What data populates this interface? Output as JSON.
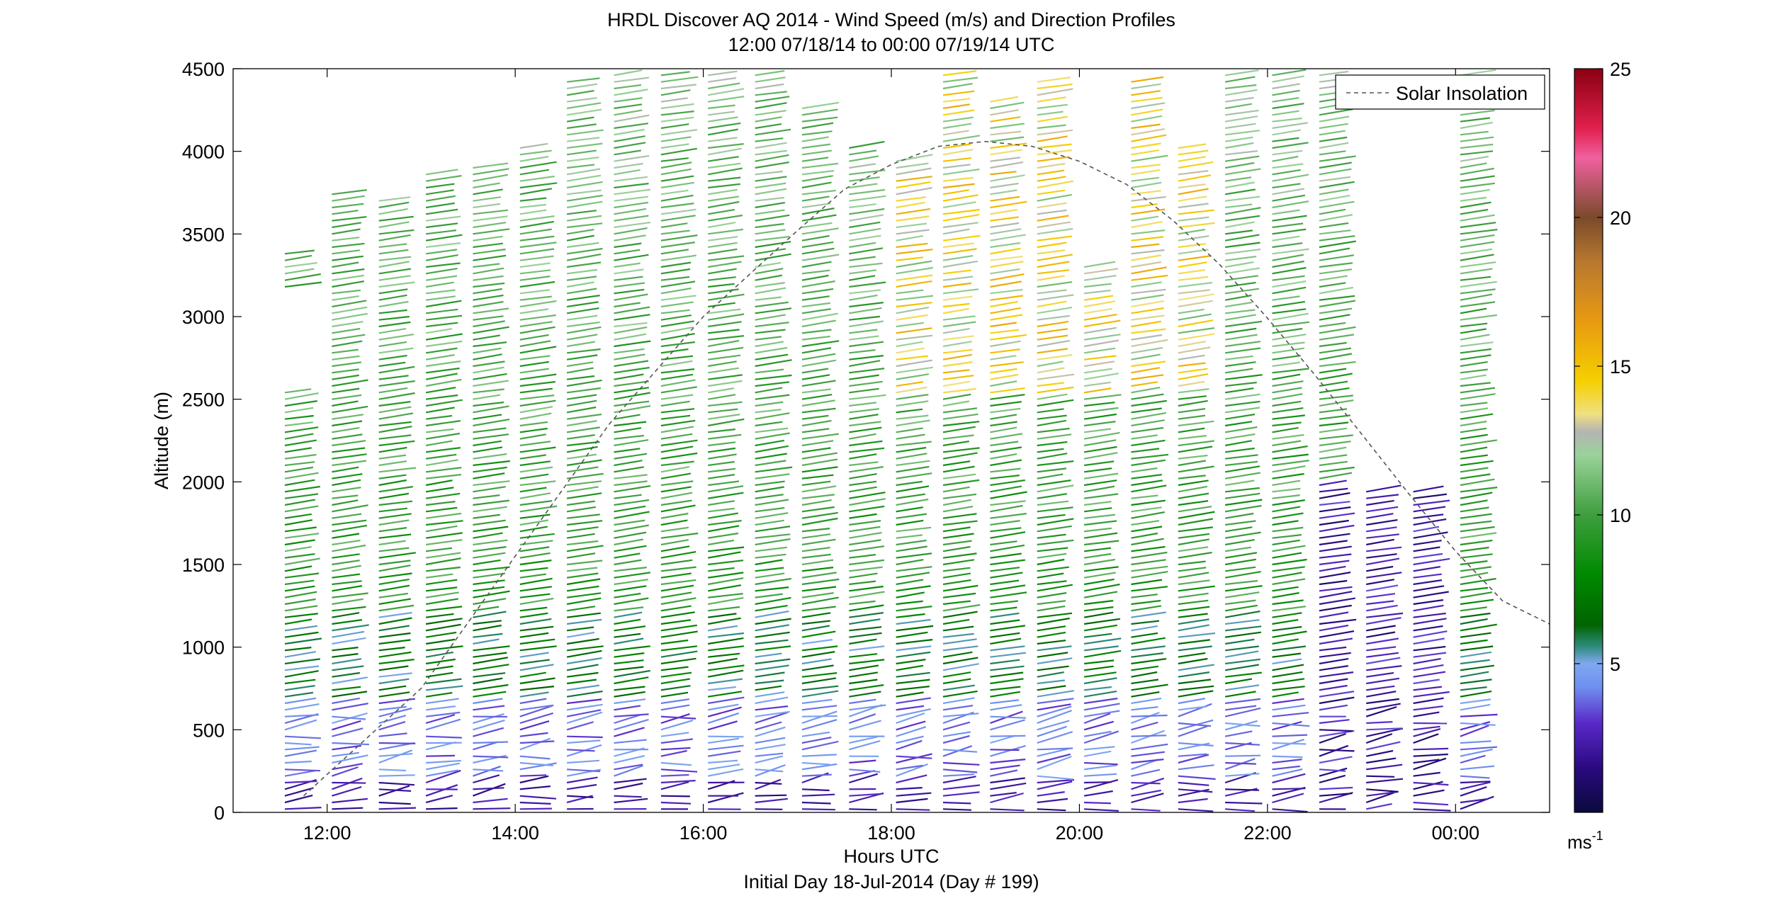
{
  "chart_data": {
    "type": "wind_barb_profiles",
    "title": "HRDL Discover AQ 2014 - Wind Speed (m/s) and Direction Profiles",
    "subtitle": "12:00 07/18/14 to 00:00 07/19/14  UTC",
    "xlabel": "Hours UTC",
    "xlabel2": "Initial Day 18-Jul-2014 (Day # 199)",
    "ylabel": "Altitude (m)",
    "x_unit": "hours UTC",
    "xlim": [
      11.0,
      25.0
    ],
    "ylim": [
      0,
      4500
    ],
    "x_ticks": [
      12,
      14,
      16,
      18,
      20,
      22,
      24
    ],
    "x_tick_labels": [
      "12:00",
      "14:00",
      "16:00",
      "18:00",
      "20:00",
      "22:00",
      "00:00"
    ],
    "y_ticks": [
      0,
      500,
      1000,
      1500,
      2000,
      2500,
      3000,
      3500,
      4000,
      4500
    ],
    "y_tick_labels": [
      "0",
      "500",
      "1000",
      "1500",
      "2000",
      "2500",
      "3000",
      "3500",
      "4000",
      "4500"
    ],
    "colorbar": {
      "min": 0,
      "max": 25,
      "ticks": [
        5,
        10,
        15,
        20,
        25
      ],
      "tick_labels": [
        "5",
        "10",
        "15",
        "20",
        "25"
      ],
      "unit_label": "ms",
      "unit_exponent": "-1",
      "stops": [
        {
          "v": 0,
          "color": "#0a0a3c"
        },
        {
          "v": 1.5,
          "color": "#2a0a80"
        },
        {
          "v": 3,
          "color": "#5a28c8"
        },
        {
          "v": 4.2,
          "color": "#6f8ff0"
        },
        {
          "v": 5,
          "color": "#7fa8f0"
        },
        {
          "v": 5.6,
          "color": "#2c8a78"
        },
        {
          "v": 6.3,
          "color": "#006400"
        },
        {
          "v": 8,
          "color": "#008a00"
        },
        {
          "v": 10,
          "color": "#3e9e3e"
        },
        {
          "v": 12,
          "color": "#9ad29a"
        },
        {
          "v": 12.8,
          "color": "#b4b4b4"
        },
        {
          "v": 13.4,
          "color": "#f0e080"
        },
        {
          "v": 14.5,
          "color": "#f5d000"
        },
        {
          "v": 16.5,
          "color": "#e89a10"
        },
        {
          "v": 18.5,
          "color": "#b87830"
        },
        {
          "v": 20,
          "color": "#7a4a2a"
        },
        {
          "v": 22,
          "color": "#f060a0"
        },
        {
          "v": 23,
          "color": "#e0204c"
        },
        {
          "v": 25,
          "color": "#8a0010"
        }
      ]
    },
    "legend": {
      "placement": "top-right",
      "entries": [
        {
          "label": "Solar Insolation",
          "style": "dashed",
          "color": "#000000"
        }
      ]
    },
    "solar_insolation_curve": {
      "x": [
        11.75,
        13.0,
        14.0,
        15.0,
        16.0,
        17.0,
        17.5,
        18.0,
        18.5,
        19.0,
        19.5,
        20.0,
        20.5,
        21.0,
        21.5,
        22.0,
        22.5,
        23.0,
        23.5,
        24.0,
        24.5,
        25.0
      ],
      "y": [
        100,
        750,
        1550,
        2350,
        3000,
        3520,
        3770,
        3920,
        4030,
        4060,
        4030,
        3940,
        3800,
        3580,
        3310,
        2990,
        2650,
        2290,
        1930,
        1580,
        1280,
        1140
      ]
    },
    "profiles": [
      {
        "x": 11.55,
        "top": 3400,
        "gap": [
          2550,
          3150
        ]
      },
      {
        "x": 12.05,
        "top": 3750
      },
      {
        "x": 12.55,
        "top": 3720
      },
      {
        "x": 13.05,
        "top": 3880
      },
      {
        "x": 13.55,
        "top": 3930
      },
      {
        "x": 14.05,
        "top": 4020
      },
      {
        "x": 14.55,
        "top": 4420
      },
      {
        "x": 15.05,
        "top": 4480
      },
      {
        "x": 15.55,
        "top": 4460
      },
      {
        "x": 16.05,
        "top": 4480
      },
      {
        "x": 16.55,
        "top": 4480
      },
      {
        "x": 17.05,
        "top": 4260
      },
      {
        "x": 17.55,
        "top": 4040
      },
      {
        "x": 18.05,
        "top": 3950
      },
      {
        "x": 18.55,
        "top": 4460
      },
      {
        "x": 19.05,
        "top": 4320
      },
      {
        "x": 19.55,
        "top": 4420
      },
      {
        "x": 20.05,
        "top": 3300
      },
      {
        "x": 20.55,
        "top": 4450
      },
      {
        "x": 21.05,
        "top": 4050
      },
      {
        "x": 21.55,
        "top": 4470
      },
      {
        "x": 22.05,
        "top": 4470
      },
      {
        "x": 22.55,
        "top": 4470
      },
      {
        "x": 23.05,
        "top": 1950
      },
      {
        "x": 23.55,
        "top": 1950
      },
      {
        "x": 24.05,
        "top": 4470
      }
    ]
  }
}
